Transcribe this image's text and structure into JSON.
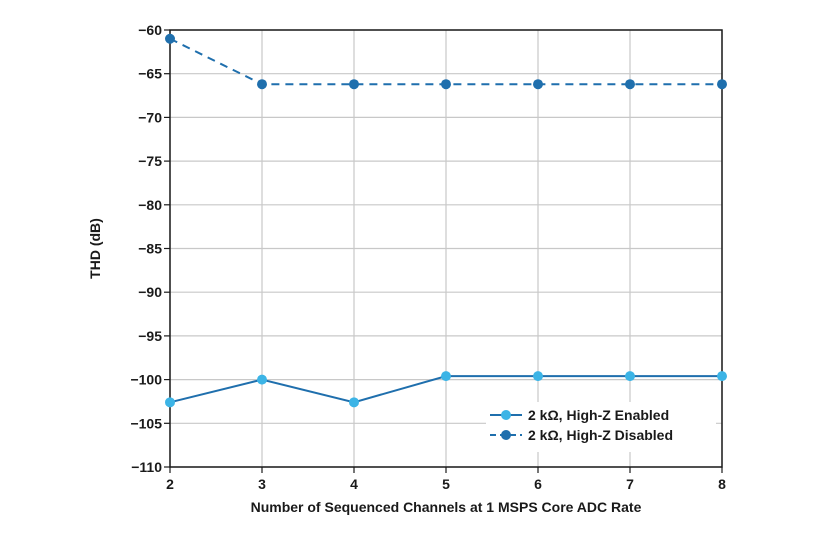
{
  "chart_data": {
    "type": "line",
    "xlabel": "Number of Sequenced Channels at 1 MSPS Core ADC Rate",
    "ylabel": "THD (dB)",
    "x": [
      2,
      3,
      4,
      5,
      6,
      7,
      8
    ],
    "xlim": [
      2,
      8
    ],
    "ylim": [
      -110,
      -60
    ],
    "xticks": [
      2,
      3,
      4,
      5,
      6,
      7,
      8
    ],
    "xtick_labels": [
      "2",
      "3",
      "4",
      "5",
      "6",
      "7",
      "8"
    ],
    "yticks": [
      -60,
      -65,
      -70,
      -75,
      -80,
      -85,
      -90,
      -95,
      -100,
      -105,
      -110
    ],
    "ytick_labels": [
      "−60",
      "−65",
      "−70",
      "−75",
      "−80",
      "−85",
      "−90",
      "−95",
      "−100",
      "−105",
      "−110"
    ],
    "grid": true,
    "legend_position": "bottom-right",
    "series": [
      {
        "name": "2 kΩ, High-Z Enabled",
        "values": [
          -102.6,
          -100.0,
          -102.6,
          -99.6,
          -99.6,
          -99.6,
          -99.6
        ],
        "color": "#1f6fad",
        "marker_color": "#3cb4e6",
        "dash": "solid"
      },
      {
        "name": "2 kΩ, High-Z Disabled",
        "values": [
          -61.0,
          -66.2,
          -66.2,
          -66.2,
          -66.2,
          -66.2,
          -66.2
        ],
        "color": "#1f6fad",
        "marker_color": "#1f6fad",
        "dash": "dashed"
      }
    ]
  }
}
